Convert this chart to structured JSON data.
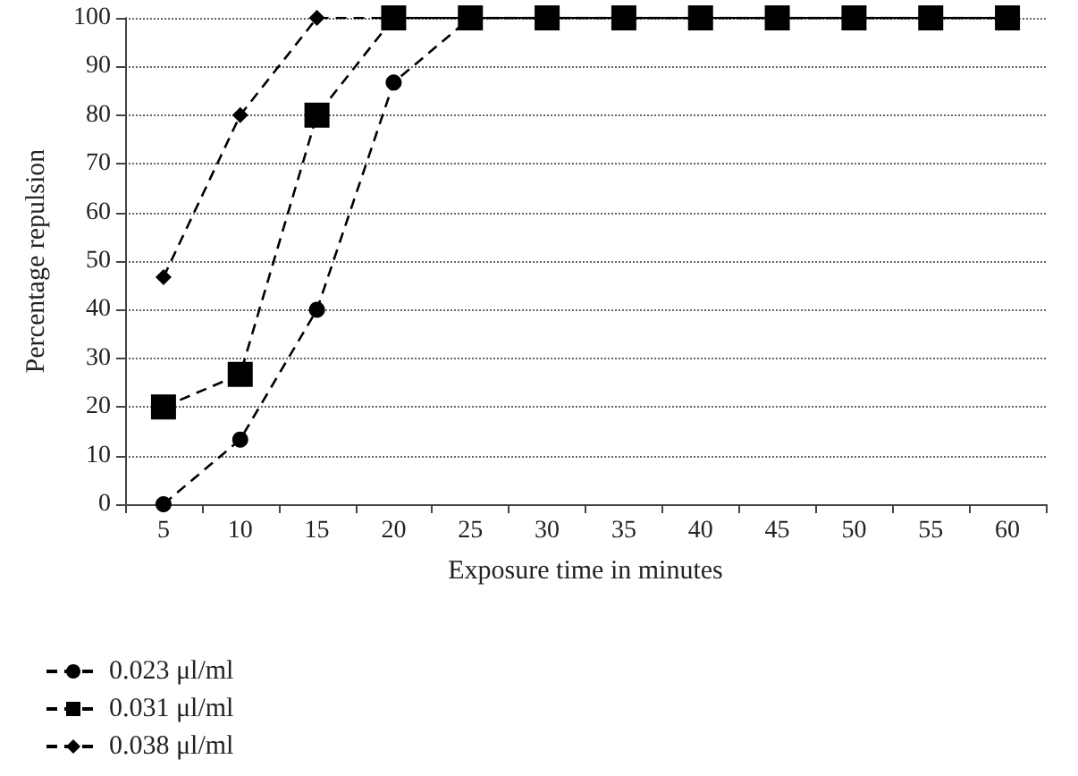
{
  "chart_data": {
    "type": "line",
    "xlabel": "Exposure time in minutes",
    "ylabel": "Percentage repulsion",
    "categories": [
      "5",
      "10",
      "15",
      "20",
      "25",
      "30",
      "35",
      "40",
      "45",
      "50",
      "55",
      "60"
    ],
    "series": [
      {
        "name": "0.023 μl/ml",
        "color": "#000000",
        "marker": "circle",
        "line_style": "dashed",
        "values": [
          0,
          13.3,
          40,
          86.7,
          100,
          100,
          100,
          100,
          100,
          100,
          100,
          100
        ]
      },
      {
        "name": "0.031 μl/ml",
        "color": "#000000",
        "marker": "square",
        "line_style": "dashed",
        "values": [
          20,
          26.7,
          80,
          100,
          100,
          100,
          100,
          100,
          100,
          100,
          100,
          100
        ]
      },
      {
        "name": "0.038 μl/ml",
        "color": "#000000",
        "marker": "diamond",
        "line_style": "dashed",
        "values": [
          46.7,
          80,
          100,
          100,
          100,
          100,
          100,
          100,
          100,
          100,
          100,
          100
        ]
      }
    ],
    "ylim": [
      0,
      100
    ],
    "yticks": [
      0,
      10,
      20,
      30,
      40,
      50,
      60,
      70,
      80,
      90,
      100
    ],
    "grid": "y",
    "legend": "bottom left"
  }
}
